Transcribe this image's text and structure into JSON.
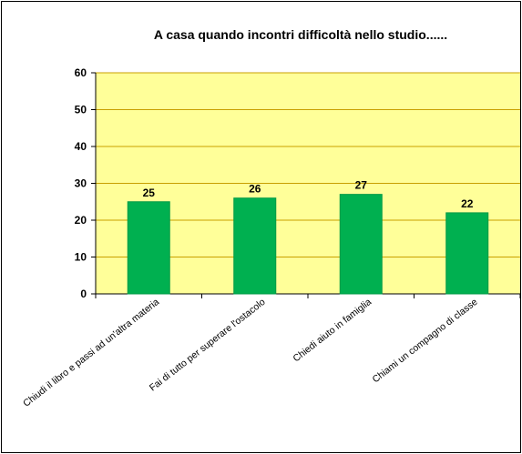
{
  "chart_data": {
    "type": "bar",
    "title": "A casa quando incontri difficoltà nello studio......",
    "categories": [
      "Chiudi il libro e passi ad un'altra materia",
      "Fai di tutto per superare l'ostacolo",
      "Chiedi aiuto in famiglia",
      "Chiami un compagno di classe"
    ],
    "values": [
      25,
      26,
      27,
      22
    ],
    "ylim": [
      0,
      60
    ],
    "yticks": [
      0,
      10,
      20,
      30,
      40,
      50,
      60
    ],
    "xlabel": "",
    "ylabel": "",
    "grid": true,
    "legend": "none",
    "colors": {
      "bar": "#00b050",
      "plot_area": "#ffff99",
      "gridline": "#c8a000",
      "axis": "#000000"
    }
  }
}
